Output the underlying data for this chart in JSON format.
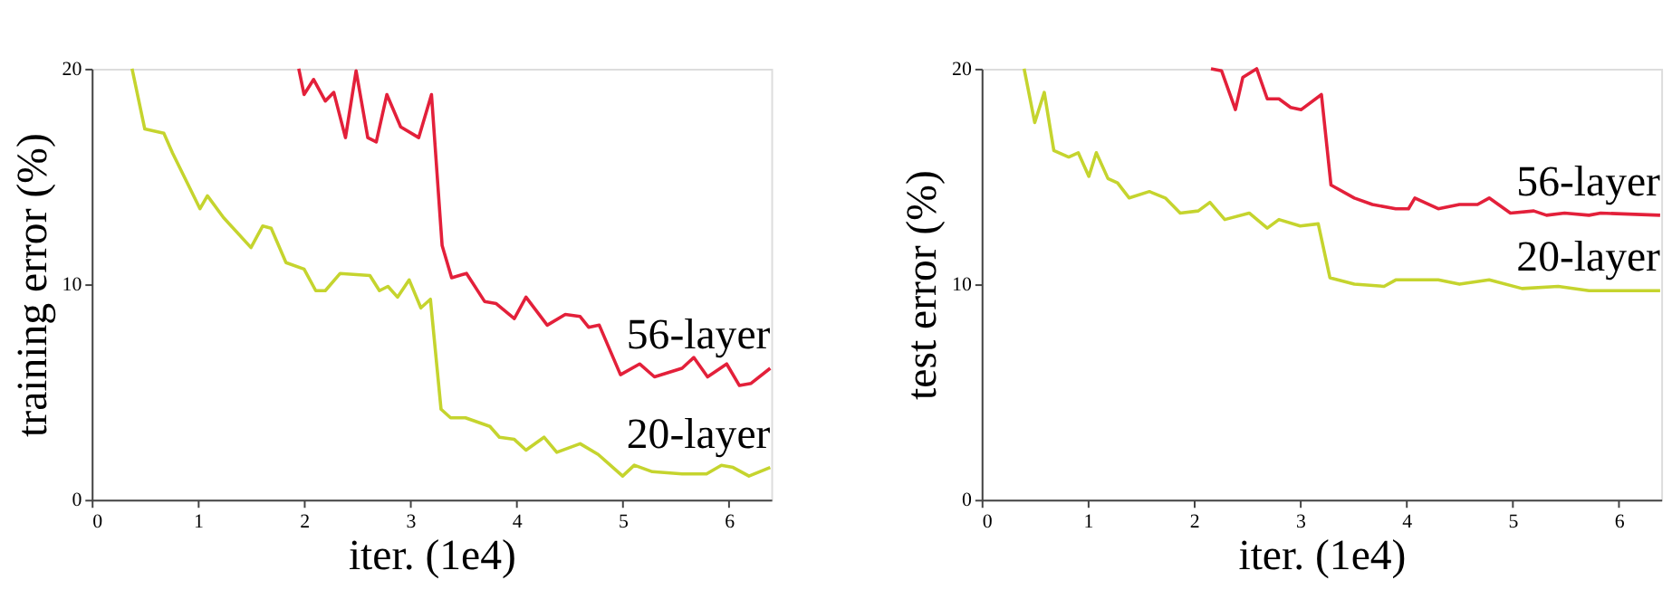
{
  "chart_data": [
    {
      "type": "line",
      "xlabel": "iter. (1e4)",
      "ylabel": "training error (%)",
      "xlim": [
        0,
        6.4
      ],
      "xticks": [
        0,
        1,
        2,
        3,
        4,
        5,
        6
      ],
      "ylim": [
        0,
        20
      ],
      "yticks": [
        0,
        10,
        20
      ],
      "grid": false,
      "legend": false,
      "marker": "none",
      "line_style": "solid",
      "series": [
        {
          "name": "56-layer",
          "color": "#e3203a",
          "x": [
            1.95,
            2.0,
            2.09,
            2.2,
            2.28,
            2.39,
            2.49,
            2.6,
            2.68,
            2.78,
            2.91,
            3.08,
            3.2,
            3.3,
            3.39,
            3.53,
            3.7,
            3.81,
            3.98,
            4.09,
            4.29,
            4.46,
            4.6,
            4.68,
            4.78,
            4.98,
            5.16,
            5.3,
            5.56,
            5.67,
            5.8,
            5.98,
            6.1,
            6.21,
            6.39
          ],
          "values": [
            20.0,
            18.8,
            19.5,
            18.5,
            18.9,
            16.8,
            19.9,
            16.8,
            16.6,
            18.8,
            17.3,
            16.8,
            18.8,
            11.8,
            10.3,
            10.5,
            9.2,
            9.1,
            8.4,
            9.4,
            8.1,
            8.6,
            8.5,
            8.0,
            8.1,
            5.8,
            6.3,
            5.7,
            6.1,
            6.6,
            5.7,
            6.3,
            5.3,
            5.4,
            6.1
          ]
        },
        {
          "name": "20-layer",
          "color": "#c5d42e",
          "x": [
            0.38,
            0.5,
            0.68,
            0.76,
            1.02,
            1.09,
            1.24,
            1.5,
            1.61,
            1.69,
            1.83,
            2.0,
            2.11,
            2.2,
            2.34,
            2.62,
            2.71,
            2.79,
            2.88,
            2.99,
            3.1,
            3.19,
            3.29,
            3.38,
            3.52,
            3.75,
            3.84,
            3.98,
            4.09,
            4.26,
            4.38,
            4.6,
            4.77,
            5.0,
            5.11,
            5.28,
            5.56,
            5.79,
            5.93,
            6.04,
            6.19,
            6.39
          ],
          "values": [
            20.0,
            17.2,
            17.0,
            16.1,
            13.5,
            14.1,
            13.1,
            11.7,
            12.7,
            12.6,
            11.0,
            10.7,
            9.7,
            9.7,
            10.5,
            10.4,
            9.7,
            9.9,
            9.4,
            10.2,
            8.9,
            9.3,
            4.2,
            3.8,
            3.8,
            3.4,
            2.9,
            2.8,
            2.3,
            2.9,
            2.2,
            2.6,
            2.1,
            1.1,
            1.6,
            1.3,
            1.2,
            1.2,
            1.6,
            1.5,
            1.1,
            1.5
          ]
        }
      ]
    },
    {
      "type": "line",
      "xlabel": "iter. (1e4)",
      "ylabel": "test error (%)",
      "xlim": [
        0,
        6.4
      ],
      "xticks": [
        0,
        1,
        2,
        3,
        4,
        5,
        6
      ],
      "ylim": [
        0,
        20
      ],
      "yticks": [
        0,
        10,
        20
      ],
      "grid": false,
      "legend": false,
      "marker": "none",
      "line_style": "solid",
      "series": [
        {
          "name": "56-layer",
          "color": "#e3203a",
          "x": [
            2.16,
            2.26,
            2.39,
            2.46,
            2.59,
            2.69,
            2.8,
            2.91,
            3.01,
            3.2,
            3.29,
            3.51,
            3.68,
            3.9,
            4.02,
            4.08,
            4.3,
            4.5,
            4.67,
            4.78,
            4.98,
            5.2,
            5.32,
            5.49,
            5.72,
            5.83,
            6.39
          ],
          "values": [
            20.0,
            19.9,
            18.1,
            19.6,
            20.0,
            18.6,
            18.6,
            18.2,
            18.1,
            18.8,
            14.6,
            14.0,
            13.7,
            13.5,
            13.5,
            14.0,
            13.5,
            13.7,
            13.7,
            14.0,
            13.3,
            13.4,
            13.2,
            13.3,
            13.2,
            13.3,
            13.2
          ]
        },
        {
          "name": "20-layer",
          "color": "#c5d42e",
          "x": [
            0.4,
            0.5,
            0.59,
            0.68,
            0.82,
            0.91,
            1.01,
            1.08,
            1.19,
            1.28,
            1.39,
            1.58,
            1.73,
            1.87,
            2.04,
            2.15,
            2.29,
            2.52,
            2.69,
            2.8,
            3.0,
            3.17,
            3.28,
            3.51,
            3.79,
            3.9,
            4.3,
            4.5,
            4.78,
            5.09,
            5.43,
            5.72,
            6.39
          ],
          "values": [
            20.0,
            17.5,
            18.9,
            16.2,
            15.9,
            16.1,
            15.0,
            16.1,
            14.9,
            14.7,
            14.0,
            14.3,
            14.0,
            13.3,
            13.4,
            13.8,
            13.0,
            13.3,
            12.6,
            13.0,
            12.7,
            12.8,
            10.3,
            10.0,
            9.9,
            10.2,
            10.2,
            10.0,
            10.2,
            9.8,
            9.9,
            9.7,
            9.7
          ]
        }
      ]
    }
  ]
}
